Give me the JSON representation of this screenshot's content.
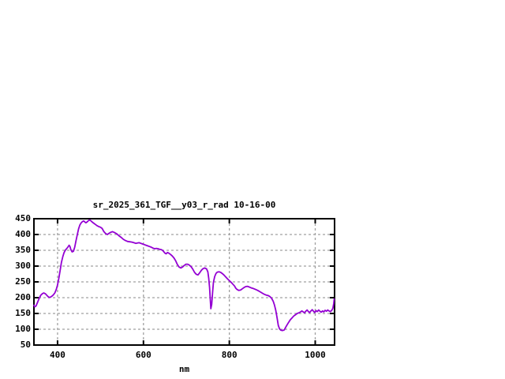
{
  "chart_data": {
    "type": "line",
    "title": "sr_2025_361_TGF__y03_r_rad 10-16-00",
    "xlabel": "nm",
    "ylabel": "",
    "xlim": [
      345,
      1045
    ],
    "ylim": [
      50,
      450
    ],
    "xticks": [
      400,
      600,
      800,
      1000
    ],
    "yticks": [
      50,
      100,
      150,
      200,
      250,
      300,
      350,
      400,
      450
    ],
    "grid": true,
    "legend": "none",
    "line_color": "#9400D3",
    "grid_color": "#A0A0A0",
    "axis_color": "#000000",
    "background_color": "#FFFFFF",
    "points": [
      [
        345,
        176
      ],
      [
        347,
        171
      ],
      [
        350,
        174
      ],
      [
        353,
        184
      ],
      [
        357,
        197
      ],
      [
        361,
        208
      ],
      [
        365,
        213
      ],
      [
        368,
        215
      ],
      [
        372,
        212
      ],
      [
        376,
        206
      ],
      [
        380,
        201
      ],
      [
        384,
        202
      ],
      [
        388,
        206
      ],
      [
        391,
        210
      ],
      [
        394,
        216
      ],
      [
        397,
        226
      ],
      [
        400,
        240
      ],
      [
        403,
        262
      ],
      [
        406,
        286
      ],
      [
        409,
        311
      ],
      [
        412,
        329
      ],
      [
        415,
        342
      ],
      [
        418,
        350
      ],
      [
        421,
        355
      ],
      [
        424,
        360
      ],
      [
        427,
        366
      ],
      [
        429,
        362
      ],
      [
        431,
        352
      ],
      [
        434,
        345
      ],
      [
        437,
        347
      ],
      [
        440,
        360
      ],
      [
        443,
        380
      ],
      [
        446,
        400
      ],
      [
        449,
        418
      ],
      [
        452,
        430
      ],
      [
        455,
        437
      ],
      [
        458,
        441
      ],
      [
        461,
        443
      ],
      [
        464,
        439
      ],
      [
        466,
        437
      ],
      [
        469,
        440
      ],
      [
        472,
        444
      ],
      [
        475,
        446
      ],
      [
        478,
        443
      ],
      [
        481,
        439
      ],
      [
        484,
        436
      ],
      [
        488,
        432
      ],
      [
        492,
        428
      ],
      [
        496,
        425
      ],
      [
        500,
        423
      ],
      [
        504,
        419
      ],
      [
        508,
        409
      ],
      [
        512,
        403
      ],
      [
        516,
        400
      ],
      [
        520,
        404
      ],
      [
        524,
        407
      ],
      [
        528,
        409
      ],
      [
        533,
        406
      ],
      [
        538,
        402
      ],
      [
        543,
        396
      ],
      [
        548,
        391
      ],
      [
        553,
        385
      ],
      [
        558,
        381
      ],
      [
        563,
        378
      ],
      [
        568,
        377
      ],
      [
        573,
        376
      ],
      [
        578,
        374
      ],
      [
        582,
        372
      ],
      [
        586,
        373
      ],
      [
        590,
        374
      ],
      [
        594,
        372
      ],
      [
        598,
        370
      ],
      [
        602,
        368
      ],
      [
        606,
        366
      ],
      [
        610,
        364
      ],
      [
        614,
        362
      ],
      [
        618,
        360
      ],
      [
        622,
        357
      ],
      [
        626,
        355
      ],
      [
        630,
        356
      ],
      [
        634,
        355
      ],
      [
        638,
        353
      ],
      [
        642,
        352
      ],
      [
        646,
        348
      ],
      [
        650,
        341
      ],
      [
        653,
        339
      ],
      [
        656,
        343
      ],
      [
        659,
        341
      ],
      [
        663,
        337
      ],
      [
        667,
        332
      ],
      [
        671,
        326
      ],
      [
        675,
        317
      ],
      [
        679,
        305
      ],
      [
        683,
        297
      ],
      [
        687,
        294
      ],
      [
        691,
        297
      ],
      [
        695,
        302
      ],
      [
        699,
        306
      ],
      [
        703,
        306
      ],
      [
        707,
        303
      ],
      [
        711,
        298
      ],
      [
        715,
        290
      ],
      [
        719,
        280
      ],
      [
        723,
        274
      ],
      [
        727,
        272
      ],
      [
        731,
        279
      ],
      [
        735,
        287
      ],
      [
        739,
        292
      ],
      [
        743,
        294
      ],
      [
        747,
        291
      ],
      [
        750,
        282
      ],
      [
        752,
        262
      ],
      [
        754,
        232
      ],
      [
        756,
        186
      ],
      [
        757,
        165
      ],
      [
        759,
        179
      ],
      [
        761,
        216
      ],
      [
        763,
        249
      ],
      [
        766,
        267
      ],
      [
        769,
        277
      ],
      [
        772,
        281
      ],
      [
        776,
        282
      ],
      [
        780,
        280
      ],
      [
        784,
        276
      ],
      [
        788,
        271
      ],
      [
        792,
        265
      ],
      [
        796,
        259
      ],
      [
        800,
        254
      ],
      [
        804,
        249
      ],
      [
        808,
        243
      ],
      [
        812,
        237
      ],
      [
        815,
        230
      ],
      [
        818,
        226
      ],
      [
        822,
        223
      ],
      [
        826,
        224
      ],
      [
        830,
        228
      ],
      [
        834,
        232
      ],
      [
        838,
        235
      ],
      [
        842,
        236
      ],
      [
        846,
        234
      ],
      [
        851,
        231
      ],
      [
        856,
        229
      ],
      [
        861,
        226
      ],
      [
        866,
        223
      ],
      [
        871,
        219
      ],
      [
        876,
        215
      ],
      [
        881,
        211
      ],
      [
        886,
        208
      ],
      [
        890,
        207
      ],
      [
        894,
        204
      ],
      [
        898,
        199
      ],
      [
        902,
        189
      ],
      [
        905,
        177
      ],
      [
        908,
        161
      ],
      [
        911,
        137
      ],
      [
        914,
        112
      ],
      [
        917,
        101
      ],
      [
        920,
        97
      ],
      [
        924,
        96
      ],
      [
        928,
        98
      ],
      [
        931,
        106
      ],
      [
        934,
        113
      ],
      [
        938,
        122
      ],
      [
        942,
        130
      ],
      [
        946,
        136
      ],
      [
        950,
        142
      ],
      [
        954,
        146
      ],
      [
        958,
        150
      ],
      [
        962,
        152
      ],
      [
        966,
        155
      ],
      [
        969,
        158
      ],
      [
        972,
        155
      ],
      [
        975,
        152
      ],
      [
        978,
        157
      ],
      [
        981,
        161
      ],
      [
        984,
        156
      ],
      [
        987,
        153
      ],
      [
        990,
        158
      ],
      [
        993,
        162
      ],
      [
        996,
        157
      ],
      [
        999,
        153
      ],
      [
        1002,
        159
      ],
      [
        1005,
        156
      ],
      [
        1008,
        161
      ],
      [
        1011,
        157
      ],
      [
        1014,
        154
      ],
      [
        1017,
        158
      ],
      [
        1020,
        155
      ],
      [
        1023,
        160
      ],
      [
        1026,
        157
      ],
      [
        1029,
        161
      ],
      [
        1032,
        158
      ],
      [
        1035,
        156
      ],
      [
        1038,
        159
      ],
      [
        1041,
        166
      ],
      [
        1043,
        181
      ],
      [
        1044,
        196
      ]
    ]
  }
}
